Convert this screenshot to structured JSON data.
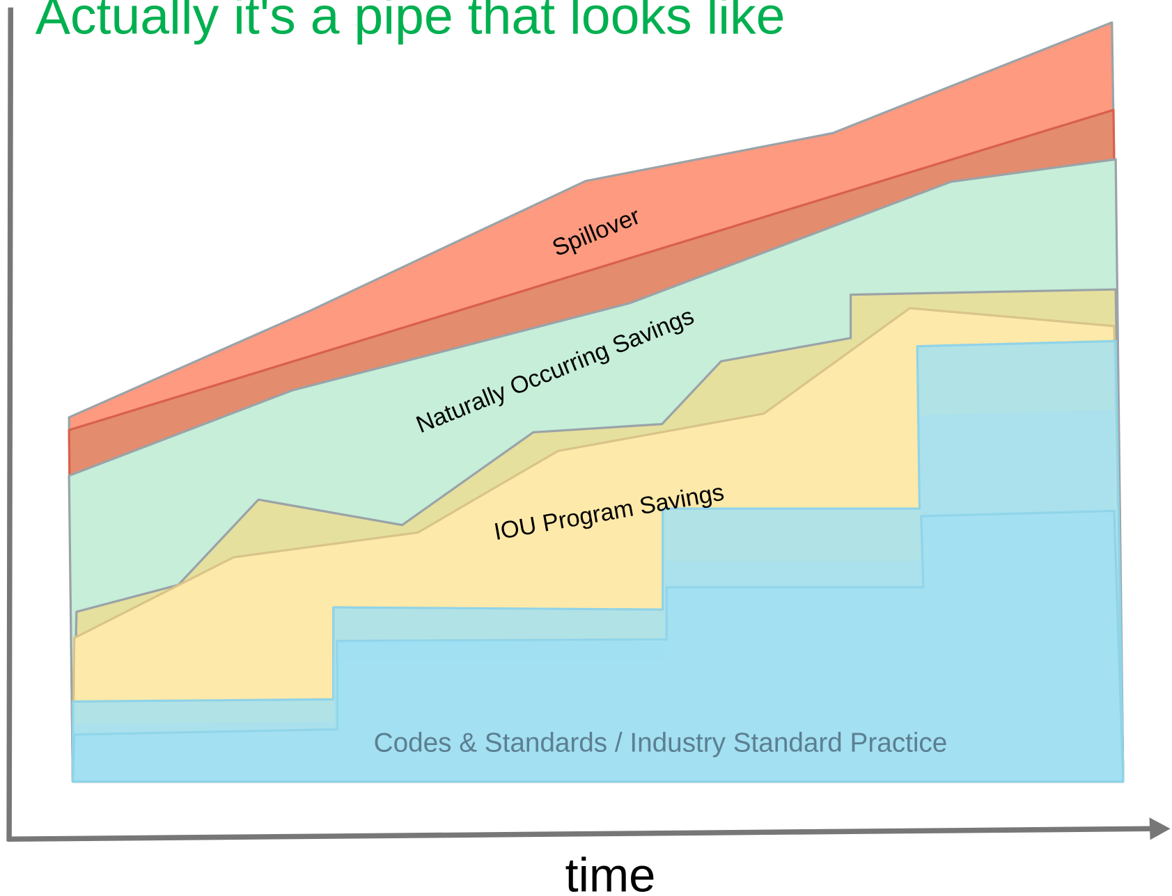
{
  "title": "Actually it's a pipe that looks like",
  "layers": [
    {
      "label": "Spillover"
    },
    {
      "label": "Naturally Occurring Savings"
    },
    {
      "label": "IOU Program Savings"
    },
    {
      "label": "Codes & Standards / Industry Standard Practice"
    }
  ],
  "x_axis_label": "time"
}
